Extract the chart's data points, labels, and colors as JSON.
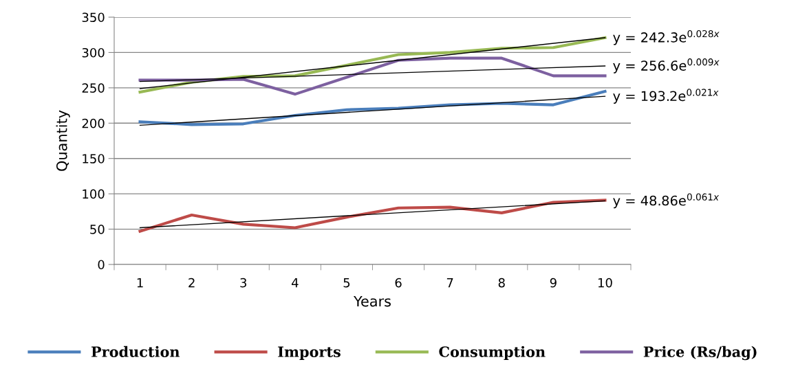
{
  "chart_data": {
    "type": "line",
    "xlabel": "Years",
    "ylabel": "Quantity",
    "categories": [
      "1",
      "2",
      "3",
      "4",
      "5",
      "6",
      "7",
      "8",
      "9",
      "10"
    ],
    "series": [
      {
        "name": "Production",
        "color": "#4a7ebb",
        "values": [
          202,
          198,
          199,
          211,
          219,
          221,
          226,
          228,
          226,
          245
        ]
      },
      {
        "name": "Imports",
        "color": "#be4b48",
        "values": [
          47,
          70,
          57,
          52,
          67,
          80,
          81,
          73,
          88,
          91
        ]
      },
      {
        "name": "Consumption",
        "color": "#98b954",
        "values": [
          244,
          258,
          266,
          267,
          282,
          297,
          300,
          306,
          307,
          321
        ]
      },
      {
        "name": "Price (Rs/bag)",
        "color": "#7d60a0",
        "values": [
          261,
          261,
          262,
          241,
          265,
          289,
          292,
          292,
          267,
          267
        ]
      },
      {
        "type": "line",
        "color": "#000000",
        "x": [
          "1",
          "10"
        ],
        "values": [
          249,
          321
        ]
      },
      {
        "type": "line",
        "color": "#000000",
        "x": [
          "1",
          "10"
        ],
        "values": [
          259,
          281
        ]
      },
      {
        "type": "line",
        "color": "#000000",
        "x": [
          "1",
          "10"
        ],
        "values": [
          197,
          238
        ]
      },
      {
        "type": "line",
        "color": "#000000",
        "x": [
          "1",
          "10"
        ],
        "values": [
          52,
          90
        ]
      }
    ],
    "annotations": [
      {
        "text": "y = 242.3e$^{0.028x}$",
        "x": "10",
        "y": 321
      },
      {
        "text": "y = 256.6e$^{0.009x}$",
        "x": "10",
        "y": 281
      },
      {
        "text": "y = 193.2e$^{0.021x}$",
        "x": "10",
        "y": 238
      },
      {
        "text": "y = 48.86e$^{0.061x}$",
        "x": "10",
        "y": 90
      }
    ],
    "ylim": [
      0,
      350
    ],
    "yticks": [
      0,
      50,
      100,
      150,
      200,
      250,
      300,
      350
    ],
    "grid": "y",
    "legend": "bottom",
    "marker": "none",
    "line_style": "solid"
  }
}
